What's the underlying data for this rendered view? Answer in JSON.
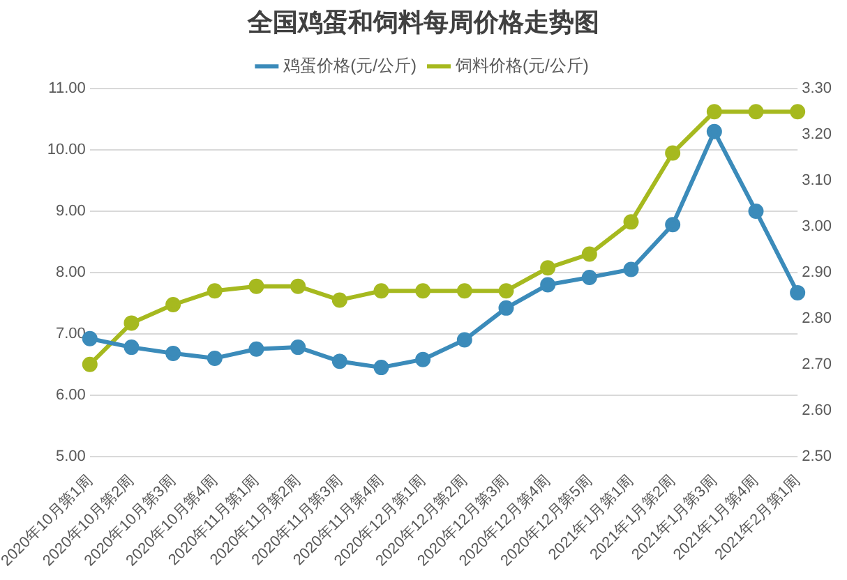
{
  "chart_data": {
    "type": "line",
    "title": "全国鸡蛋和饲料每周价格走势图",
    "categories": [
      "2020年10月第1周",
      "2020年10月第2周",
      "2020年10月第3周",
      "2020年10月第4周",
      "2020年11月第1周",
      "2020年11月第2周",
      "2020年11月第3周",
      "2020年11月第4周",
      "2020年12月第1周",
      "2020年12月第2周",
      "2020年12月第3周",
      "2020年12月第4周",
      "2020年12月第5周",
      "2021年1月第1周",
      "2021年1月第2周",
      "2021年1月第3周",
      "2021年1月第4周",
      "2021年2月第1周"
    ],
    "series": [
      {
        "name": "鸡蛋价格(元/公斤)",
        "color": "#3b8bba",
        "values": [
          6.92,
          6.78,
          6.68,
          6.6,
          6.75,
          6.78,
          6.55,
          6.45,
          6.58,
          6.9,
          7.42,
          7.8,
          7.92,
          8.05,
          8.78,
          10.3,
          9.0,
          7.67
        ]
      },
      {
        "name": "饲料价格(元/公斤)",
        "color": "#a6b91f",
        "axis": "y2",
        "values": [
          2.7,
          2.79,
          2.83,
          2.86,
          2.87,
          2.87,
          2.84,
          2.86,
          2.86,
          2.86,
          2.86,
          2.91,
          2.94,
          3.01,
          3.16,
          3.25,
          3.25,
          3.25
        ]
      }
    ],
    "ylim": [
      5,
      11
    ],
    "yticks": [
      {
        "value": 5,
        "label": "5.00"
      },
      {
        "value": 6,
        "label": "6.00"
      },
      {
        "value": 7,
        "label": "7.00"
      },
      {
        "value": 8,
        "label": "8.00"
      },
      {
        "value": 9,
        "label": "9.00"
      },
      {
        "value": 10,
        "label": "10.00"
      },
      {
        "value": 11,
        "label": "11.00"
      }
    ],
    "y2lim": [
      2.5,
      3.3
    ],
    "y2ticks": [
      {
        "value": 2.5,
        "label": "2.50"
      },
      {
        "value": 2.6,
        "label": "2.60"
      },
      {
        "value": 2.7,
        "label": "2.70"
      },
      {
        "value": 2.8,
        "label": "2.80"
      },
      {
        "value": 2.9,
        "label": "2.90"
      },
      {
        "value": 3.0,
        "label": "3.00"
      },
      {
        "value": 3.1,
        "label": "3.10"
      },
      {
        "value": 3.2,
        "label": "3.20"
      },
      {
        "value": 3.3,
        "label": "3.30"
      }
    ],
    "grid": "y",
    "legend": "top",
    "marker": "circle",
    "line_style": "solid"
  }
}
